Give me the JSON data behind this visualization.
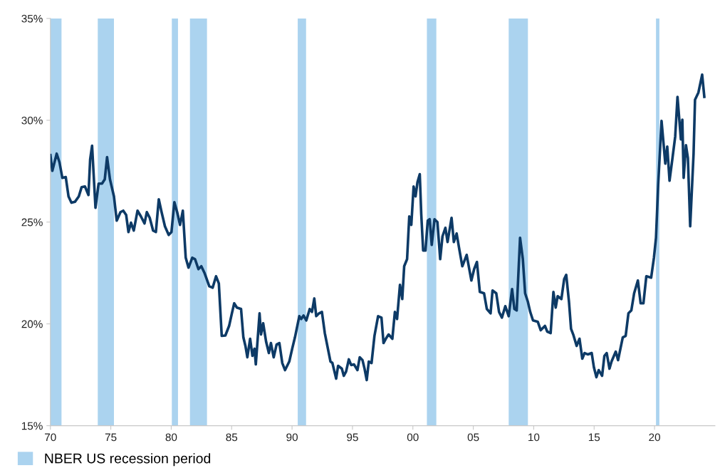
{
  "chart_data": {
    "type": "line",
    "x": [
      1970.0,
      1970.16,
      1970.52,
      1970.75,
      1970.99,
      1971.27,
      1971.5,
      1971.74,
      1972.04,
      1972.35,
      1972.58,
      1972.86,
      1973.15,
      1973.29,
      1973.45,
      1973.73,
      1973.99,
      1974.27,
      1974.5,
      1974.69,
      1974.93,
      1975.26,
      1975.49,
      1975.8,
      1976.03,
      1976.27,
      1976.46,
      1976.67,
      1976.9,
      1977.21,
      1977.49,
      1977.79,
      1977.98,
      1978.22,
      1978.5,
      1978.73,
      1978.97,
      1979.2,
      1979.48,
      1979.79,
      1980.02,
      1980.26,
      1980.49,
      1980.73,
      1980.96,
      1981.2,
      1981.43,
      1981.74,
      1981.97,
      1982.25,
      1982.49,
      1982.77,
      1983.15,
      1983.43,
      1983.71,
      1983.94,
      1984.18,
      1984.48,
      1984.79,
      1985.02,
      1985.21,
      1985.43,
      1985.78,
      1985.97,
      1986.14,
      1986.3,
      1986.53,
      1986.72,
      1986.89,
      1987.0,
      1987.31,
      1987.43,
      1987.61,
      1987.85,
      1988.08,
      1988.25,
      1988.48,
      1988.72,
      1988.95,
      1989.19,
      1989.42,
      1989.77,
      1990.01,
      1990.24,
      1990.6,
      1990.76,
      1990.95,
      1991.18,
      1991.46,
      1991.65,
      1991.84,
      1992.0,
      1992.24,
      1992.47,
      1992.71,
      1993.18,
      1993.34,
      1993.65,
      1993.81,
      1994.12,
      1994.28,
      1994.47,
      1994.7,
      1994.89,
      1995.13,
      1995.41,
      1995.6,
      1995.83,
      1996.0,
      1996.18,
      1996.35,
      1996.58,
      1996.82,
      1997.12,
      1997.4,
      1997.57,
      1997.76,
      1997.99,
      1998.3,
      1998.51,
      1998.69,
      1998.93,
      1999.12,
      1999.28,
      1999.52,
      1999.7,
      1999.87,
      2000.06,
      2000.22,
      2000.38,
      2000.57,
      2000.69,
      2000.85,
      2001.04,
      2001.23,
      2001.39,
      2001.56,
      2001.79,
      2002.03,
      2002.26,
      2002.45,
      2002.69,
      2002.87,
      2003.2,
      2003.39,
      2003.62,
      2003.86,
      2004.09,
      2004.45,
      2004.84,
      2005.07,
      2005.3,
      2005.54,
      2005.89,
      2006.12,
      2006.43,
      2006.59,
      2006.9,
      2007.13,
      2007.37,
      2007.65,
      2007.93,
      2008.21,
      2008.4,
      2008.59,
      2008.87,
      2009.1,
      2009.29,
      2009.52,
      2009.71,
      2009.94,
      2010.34,
      2010.58,
      2010.93,
      2011.12,
      2011.4,
      2011.63,
      2011.82,
      2011.98,
      2012.29,
      2012.52,
      2012.69,
      2012.92,
      2013.09,
      2013.27,
      2013.55,
      2013.79,
      2014.02,
      2014.21,
      2014.49,
      2014.8,
      2014.98,
      2015.19,
      2015.38,
      2015.66,
      2015.85,
      2016.04,
      2016.27,
      2016.44,
      2016.79,
      2016.98,
      2017.37,
      2017.61,
      2017.84,
      2018.08,
      2018.31,
      2018.62,
      2018.85,
      2019.08,
      2019.32,
      2019.72,
      2019.95,
      2020.12,
      2020.3,
      2020.58,
      2020.89,
      2021.05,
      2021.24,
      2021.47,
      2021.71,
      2021.9,
      2022.18,
      2022.3,
      2022.41,
      2022.6,
      2022.76,
      2022.95,
      2023.23,
      2023.35,
      2023.63,
      2023.94,
      2024.12
    ],
    "series": [
      {
        "color": "#0d3a66",
        "values": [
          28.29,
          27.52,
          28.36,
          27.94,
          27.17,
          27.21,
          26.26,
          25.95,
          26.0,
          26.26,
          26.71,
          26.75,
          26.33,
          28.08,
          28.75,
          25.7,
          26.89,
          26.89,
          27.1,
          28.19,
          27.1,
          26.26,
          25.07,
          25.49,
          25.56,
          25.35,
          24.51,
          24.97,
          24.58,
          25.56,
          25.28,
          24.93,
          25.49,
          25.21,
          24.58,
          24.51,
          26.12,
          25.49,
          24.79,
          24.37,
          24.51,
          25.98,
          25.49,
          24.86,
          25.56,
          23.25,
          22.76,
          23.25,
          23.18,
          22.69,
          22.83,
          22.48,
          21.85,
          21.78,
          22.34,
          21.99,
          19.41,
          19.43,
          19.9,
          20.52,
          21.01,
          20.8,
          20.73,
          19.34,
          18.92,
          18.36,
          19.27,
          18.43,
          18.78,
          18.01,
          20.52,
          19.48,
          20.03,
          19.13,
          18.57,
          19.06,
          18.36,
          18.99,
          19.06,
          18.08,
          17.73,
          18.15,
          18.78,
          19.34,
          20.38,
          20.24,
          20.41,
          20.17,
          20.73,
          20.59,
          21.25,
          20.38,
          20.52,
          20.59,
          19.55,
          18.15,
          18.08,
          17.31,
          17.94,
          17.8,
          17.45,
          17.66,
          18.26,
          17.98,
          18.01,
          17.73,
          18.36,
          18.22,
          17.8,
          17.24,
          18.15,
          18.08,
          19.41,
          20.38,
          20.31,
          19.06,
          19.27,
          19.48,
          19.27,
          20.59,
          20.24,
          21.92,
          21.22,
          22.83,
          23.18,
          25.28,
          24.86,
          26.75,
          26.26,
          26.96,
          27.35,
          25.42,
          23.6,
          23.6,
          25.07,
          25.14,
          23.88,
          25.14,
          25.0,
          23.18,
          24.3,
          24.72,
          24.02,
          25.21,
          24.02,
          24.44,
          23.6,
          22.83,
          23.39,
          22.13,
          22.69,
          23.04,
          21.57,
          21.5,
          20.73,
          20.52,
          21.64,
          21.5,
          20.59,
          20.31,
          20.87,
          20.38,
          21.71,
          20.73,
          20.66,
          24.23,
          23.18,
          21.5,
          21.08,
          20.59,
          20.17,
          20.1,
          19.69,
          19.9,
          19.62,
          19.55,
          21.57,
          20.8,
          21.36,
          21.22,
          22.2,
          22.41,
          21.08,
          19.76,
          19.48,
          18.92,
          19.27,
          18.29,
          18.57,
          18.5,
          18.57,
          17.87,
          17.38,
          17.73,
          17.45,
          18.43,
          18.57,
          17.8,
          18.15,
          18.64,
          18.22,
          19.34,
          19.41,
          20.52,
          20.66,
          21.5,
          22.13,
          21.01,
          21.01,
          22.34,
          22.27,
          23.25,
          24.23,
          26.82,
          29.97,
          27.87,
          28.71,
          27.03,
          28.08,
          29.2,
          31.15,
          29.06,
          30.03,
          27.17,
          28.78,
          28.15,
          24.79,
          28.36,
          31.01,
          31.36,
          32.24,
          31.15
        ]
      }
    ],
    "xlim": [
      1970,
      2025
    ],
    "xticks": [
      {
        "value": 1970,
        "label": "70"
      },
      {
        "value": 1975,
        "label": "75"
      },
      {
        "value": 1980,
        "label": "80"
      },
      {
        "value": 1985,
        "label": "85"
      },
      {
        "value": 1990,
        "label": "90"
      },
      {
        "value": 1995,
        "label": "95"
      },
      {
        "value": 2000,
        "label": "00"
      },
      {
        "value": 2005,
        "label": "05"
      },
      {
        "value": 2010,
        "label": "10"
      },
      {
        "value": 2015,
        "label": "15"
      },
      {
        "value": 2020,
        "label": "20"
      }
    ],
    "ylim": [
      15,
      35
    ],
    "yticks": [
      {
        "value": 15,
        "label": "15%"
      },
      {
        "value": 20,
        "label": "20%"
      },
      {
        "value": 25,
        "label": "25%"
      },
      {
        "value": 30,
        "label": "30%"
      },
      {
        "value": 35,
        "label": "35%"
      }
    ],
    "bands": [
      {
        "axis": "x",
        "from": 1970.0,
        "to": 1970.92,
        "label": "NBER US recession period",
        "color": "#abd3ef"
      },
      {
        "axis": "x",
        "from": 1973.92,
        "to": 1975.26,
        "color": "#abd3ef"
      },
      {
        "axis": "x",
        "from": 1980.05,
        "to": 1980.56,
        "color": "#abd3ef"
      },
      {
        "axis": "x",
        "from": 1981.55,
        "to": 1982.96,
        "color": "#abd3ef"
      },
      {
        "axis": "x",
        "from": 1990.47,
        "to": 1991.16,
        "color": "#abd3ef"
      },
      {
        "axis": "x",
        "from": 2001.16,
        "to": 2001.94,
        "color": "#abd3ef"
      },
      {
        "axis": "x",
        "from": 2007.93,
        "to": 2009.52,
        "color": "#abd3ef"
      },
      {
        "axis": "x",
        "from": 2020.12,
        "to": 2020.4,
        "color": "#abd3ef"
      }
    ],
    "legend": "bottom left",
    "grid": false,
    "line_style": "solid"
  }
}
